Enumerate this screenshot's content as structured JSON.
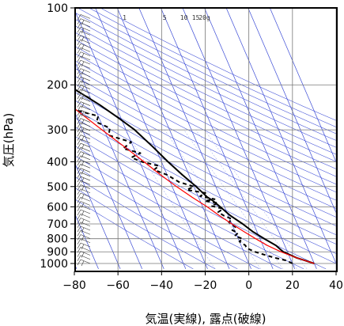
{
  "chart_data": {
    "type": "line",
    "title": "",
    "xlabel": "気温(実線), 露点(破線)",
    "ylabel": "気圧(hPa)",
    "x_range": [
      -80,
      40
    ],
    "y_range_hPa": [
      1050,
      100
    ],
    "y_scale": "log",
    "x_ticks": [
      "−80",
      "−60",
      "−40",
      "−20",
      "0",
      "20",
      "40"
    ],
    "y_ticks": [
      "100",
      "200",
      "300",
      "400",
      "500",
      "600",
      "700",
      "800",
      "900",
      "1000"
    ],
    "mixing_ratio_labels": [
      "1",
      "5",
      "10",
      "15",
      "20g"
    ],
    "grid": true,
    "series": [
      {
        "key": "temperature",
        "style": "solid",
        "color": "#000000",
        "points": [
          [
            30,
            1000
          ],
          [
            23,
            950
          ],
          [
            18,
            900
          ],
          [
            16,
            850
          ],
          [
            12,
            800
          ],
          [
            8,
            750
          ],
          [
            5,
            700
          ],
          [
            1,
            650
          ],
          [
            -2,
            600
          ],
          [
            -4,
            570
          ],
          [
            -6,
            550
          ],
          [
            -9,
            500
          ],
          [
            -13,
            450
          ],
          [
            -17,
            400
          ],
          [
            -21,
            350
          ],
          [
            -26,
            300
          ],
          [
            -31,
            270
          ],
          [
            -37,
            240
          ],
          [
            -45,
            210
          ],
          [
            -51,
            190
          ],
          [
            -56,
            170
          ],
          [
            -60,
            155
          ],
          [
            -65,
            140
          ],
          [
            -68,
            127
          ],
          [
            -70,
            120
          ],
          [
            -71,
            112
          ],
          [
            -72,
            103
          ],
          [
            -71,
            100
          ]
        ]
      },
      {
        "key": "dewpoint",
        "style": "dashed",
        "color": "#000000",
        "points": [
          [
            20,
            1000
          ],
          [
            18,
            975
          ],
          [
            13,
            950
          ],
          [
            9,
            925
          ],
          [
            5,
            900
          ],
          [
            2,
            870
          ],
          [
            2,
            850
          ],
          [
            0,
            820
          ],
          [
            2,
            800
          ],
          [
            -1,
            780
          ],
          [
            1,
            760
          ],
          [
            -1,
            740
          ],
          [
            1,
            720
          ],
          [
            -1,
            690
          ],
          [
            1,
            670
          ],
          [
            -2,
            650
          ],
          [
            -4,
            630
          ],
          [
            -1,
            610
          ],
          [
            -6,
            595
          ],
          [
            -2,
            580
          ],
          [
            -8,
            570
          ],
          [
            -3,
            560
          ],
          [
            -9,
            545
          ],
          [
            -6,
            530
          ],
          [
            -14,
            515
          ],
          [
            -10,
            500
          ],
          [
            -16,
            480
          ],
          [
            -20,
            450
          ],
          [
            -25,
            430
          ],
          [
            -22,
            415
          ],
          [
            -29,
            400
          ],
          [
            -33,
            385
          ],
          [
            -28,
            370
          ],
          [
            -35,
            355
          ],
          [
            -30,
            335
          ],
          [
            -39,
            315
          ],
          [
            -37,
            295
          ],
          [
            -42,
            280
          ],
          [
            -40,
            265
          ],
          [
            -50,
            250
          ],
          [
            -80,
            250
          ]
        ]
      },
      {
        "key": "parcel",
        "style": "solid",
        "color": "#ff0000",
        "points": [
          [
            30,
            1000
          ],
          [
            23,
            950
          ],
          [
            17,
            900
          ],
          [
            12,
            850
          ],
          [
            8,
            800
          ],
          [
            4,
            750
          ],
          [
            0,
            700
          ],
          [
            -4,
            650
          ],
          [
            -8,
            600
          ],
          [
            -13,
            550
          ],
          [
            -18,
            500
          ],
          [
            -23,
            450
          ],
          [
            -28,
            400
          ],
          [
            -34,
            350
          ],
          [
            -41,
            300
          ],
          [
            -49,
            250
          ],
          [
            -60,
            200
          ],
          [
            -67,
            175
          ],
          [
            -75,
            150
          ]
        ]
      }
    ],
    "wind_barbs": {
      "count": 60,
      "pressure_range_hPa": [
        1000,
        110
      ]
    }
  }
}
